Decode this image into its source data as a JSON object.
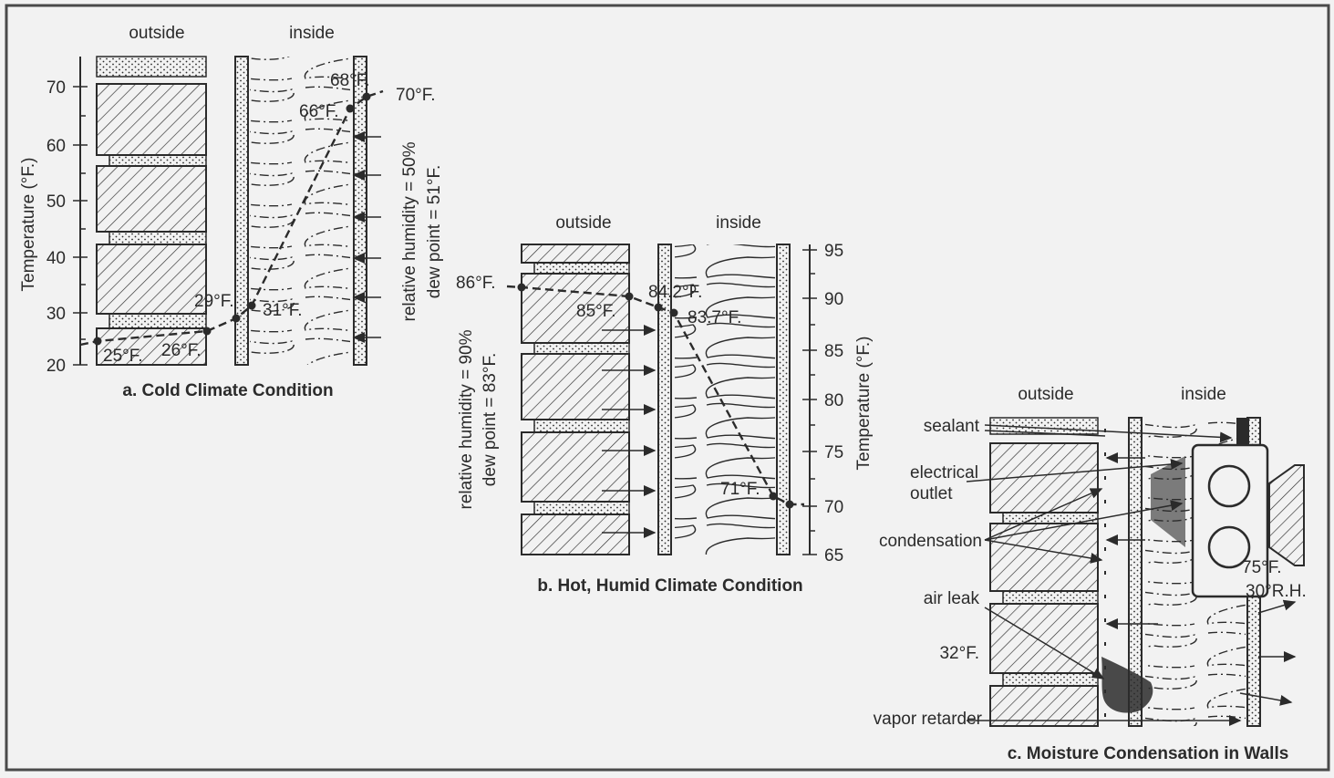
{
  "panels": {
    "a": {
      "caption": "a. Cold Climate Condition",
      "outside": "outside",
      "inside": "inside",
      "axis_title": "Temperature (°F.)",
      "ticks": [
        "70",
        "60",
        "50",
        "40",
        "30",
        "20"
      ],
      "humidity_line1": "relative humidity = 50%",
      "humidity_line2": "dew point = 51°F.",
      "temps": {
        "t25": "25°F.",
        "t26": "26°F.",
        "t29": "29°F.",
        "t31": "31°F.",
        "t66": "66°F.",
        "t68": "68°F.",
        "t70": "70°F."
      }
    },
    "b": {
      "caption": "b. Hot, Humid Climate Condition",
      "outside": "outside",
      "inside": "inside",
      "axis_title": "Temperature (°F.)",
      "ticks": [
        "95",
        "90",
        "85",
        "80",
        "75",
        "70",
        "65"
      ],
      "humidity_line1": "relative humidity = 90%",
      "humidity_line2": "dew point = 83°F.",
      "temps": {
        "t86": "86°F.",
        "t85": "85°F.",
        "t842": "84.2°F.",
        "t837": "83.7°F.",
        "t71": "71°F."
      }
    },
    "c": {
      "caption": "c. Moisture Condensation in Walls",
      "outside": "outside",
      "inside": "inside",
      "labels": {
        "sealant": "sealant",
        "electrical1": "electrical",
        "electrical2": "outlet",
        "condensation": "condensation",
        "air_leak": "air leak",
        "temp32": "32°F.",
        "vapor_retarder": "vapor retarder",
        "t75": "75°F.",
        "rh30": "30°R.H."
      }
    }
  },
  "colors": {
    "ink": "#2b2b2b",
    "background": "#f2f2f2",
    "frame": "#4a4a4a"
  }
}
